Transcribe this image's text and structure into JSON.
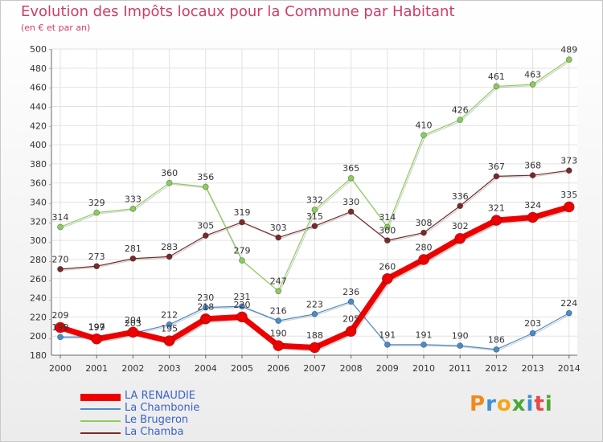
{
  "title": "Evolution des Impôts locaux pour la Commune par Habitant",
  "subtitle": "(en € et par an)",
  "brand": {
    "letters": [
      {
        "ch": "P",
        "color": "#f08a1c"
      },
      {
        "ch": "r",
        "color": "#3d8fd6"
      },
      {
        "ch": "o",
        "color": "#f0a81c"
      },
      {
        "ch": "x",
        "color": "#4aa832"
      },
      {
        "ch": "i",
        "color": "#3d8fd6"
      },
      {
        "ch": "t",
        "color": "#e84848"
      },
      {
        "ch": "i",
        "color": "#4aa832"
      }
    ]
  },
  "chart_data": {
    "type": "line",
    "x": [
      2000,
      2001,
      2002,
      2003,
      2004,
      2005,
      2006,
      2007,
      2008,
      2009,
      2010,
      2011,
      2012,
      2013,
      2014
    ],
    "ylim": [
      180,
      500
    ],
    "yticks": [
      180,
      200,
      220,
      240,
      260,
      280,
      300,
      320,
      340,
      360,
      380,
      400,
      420,
      440,
      460,
      480,
      500
    ],
    "grid": true,
    "legend_position": "bottom-left",
    "series": [
      {
        "name": "La Chamba",
        "color": "#7a2a2a",
        "width": 1.2,
        "marker": 3.5,
        "values": [
          270,
          273,
          281,
          283,
          305,
          319,
          303,
          315,
          330,
          300,
          308,
          336,
          367,
          368,
          373
        ]
      },
      {
        "name": "La Chambonie",
        "color": "#4a8cc8",
        "width": 1.2,
        "marker": 3.5,
        "values": [
          199,
          199,
          203,
          212,
          230,
          231,
          216,
          223,
          236,
          191,
          191,
          190,
          186,
          203,
          224
        ]
      },
      {
        "name": "Le Brugeron",
        "color": "#8ccd5a",
        "width": 1.2,
        "marker": 3.5,
        "values": [
          314,
          329,
          333,
          360,
          356,
          279,
          247,
          332,
          365,
          314,
          410,
          426,
          461,
          463,
          489
        ]
      },
      {
        "name": "LA RENAUDIE",
        "color": "#ee0000",
        "width": 7,
        "marker": 6.5,
        "values": [
          209,
          197,
          204,
          195,
          218,
          220,
          190,
          188,
          205,
          260,
          280,
          302,
          321,
          324,
          335
        ]
      }
    ],
    "legend_order": [
      "LA RENAUDIE",
      "La Chambonie",
      "Le Brugeron",
      "La Chamba"
    ]
  }
}
